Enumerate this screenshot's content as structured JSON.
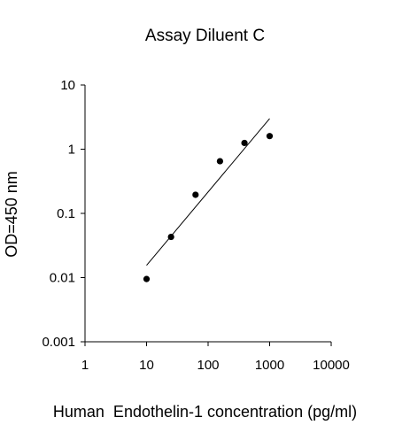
{
  "chart_data": {
    "type": "scatter",
    "title": "Assay Diluent C",
    "xlabel": "Human  Endothelin-1 concentration (pg/ml)",
    "ylabel": "OD=450 nm",
    "x_scale": "log",
    "y_scale": "log",
    "xlim": [
      1,
      10000
    ],
    "ylim": [
      0.001,
      10
    ],
    "x_ticks": [
      1,
      10,
      100,
      1000,
      10000
    ],
    "x_tick_labels": [
      "1",
      "10",
      "100",
      "1000",
      "10000"
    ],
    "y_ticks": [
      0.001,
      0.01,
      0.1,
      1,
      10
    ],
    "y_tick_labels": [
      "0.001",
      "0.01",
      "0.1",
      "1",
      "10"
    ],
    "grid": false,
    "series": [
      {
        "x": [
          10,
          25,
          62.5,
          156,
          390,
          1000
        ],
        "y": [
          0.0095,
          0.043,
          0.195,
          0.65,
          1.25,
          1.6
        ]
      }
    ],
    "trendline": {
      "x": [
        10,
        1000
      ],
      "y": [
        0.0155,
        3.0
      ]
    },
    "colors": {
      "points": "#000000",
      "line": "#000000",
      "axes": "#000000"
    }
  }
}
